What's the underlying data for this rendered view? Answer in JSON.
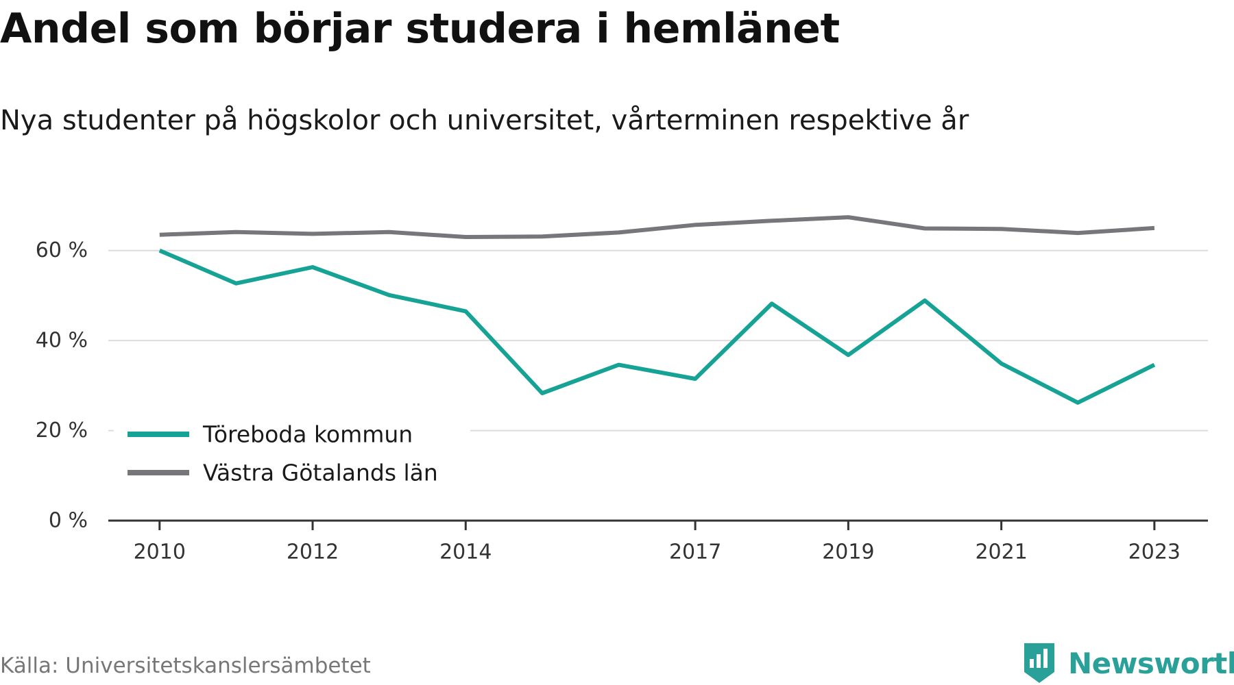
{
  "header": {
    "title": "Andel som börjar studera i hemlänet",
    "subtitle": "Nya studenter på högskolor och universitet, vårterminen respektive år"
  },
  "footer": {
    "source": "Källa: Universitetskanslersämbetet",
    "brand": "Newsworthy",
    "brand_icon": "bar-chart-logo-icon",
    "brand_color": "#2aa198"
  },
  "chart_data": {
    "type": "line",
    "title": "Andel som börjar studera i hemlänet",
    "subtitle": "Nya studenter på högskolor och universitet, vårterminen respektive år",
    "xlabel": "",
    "ylabel": "",
    "x": [
      2010,
      2011,
      2012,
      2013,
      2014,
      2015,
      2016,
      2017,
      2018,
      2019,
      2020,
      2021,
      2022,
      2023
    ],
    "x_tick_values": [
      2010,
      2012,
      2014,
      2017,
      2019,
      2021,
      2023
    ],
    "x_tick_labels": [
      "2010",
      "2012",
      "2014",
      "2017",
      "2019",
      "2021",
      "2023"
    ],
    "xlim": [
      2009.33,
      2023.7
    ],
    "ylim": [
      0,
      70
    ],
    "y_tick_values": [
      0,
      20,
      40,
      60
    ],
    "y_tick_labels": [
      "0 %",
      "20 %",
      "40 %",
      "60 %"
    ],
    "grid": "horizontal",
    "legend_position": "bottom-left",
    "series": [
      {
        "name": "Töreboda kommun",
        "color": "#16a396",
        "values": [
          60,
          52.7,
          56.3,
          50.1,
          46.5,
          28.3,
          34.6,
          31.5,
          48.2,
          36.8,
          48.9,
          34.9,
          26.2,
          34.6
        ]
      },
      {
        "name": "Västra Götalands län",
        "color": "#77767b",
        "values": [
          63.5,
          64.1,
          63.7,
          64.1,
          63.0,
          63.1,
          64.0,
          65.7,
          66.6,
          67.4,
          64.9,
          64.8,
          63.9,
          65.0
        ]
      }
    ]
  }
}
